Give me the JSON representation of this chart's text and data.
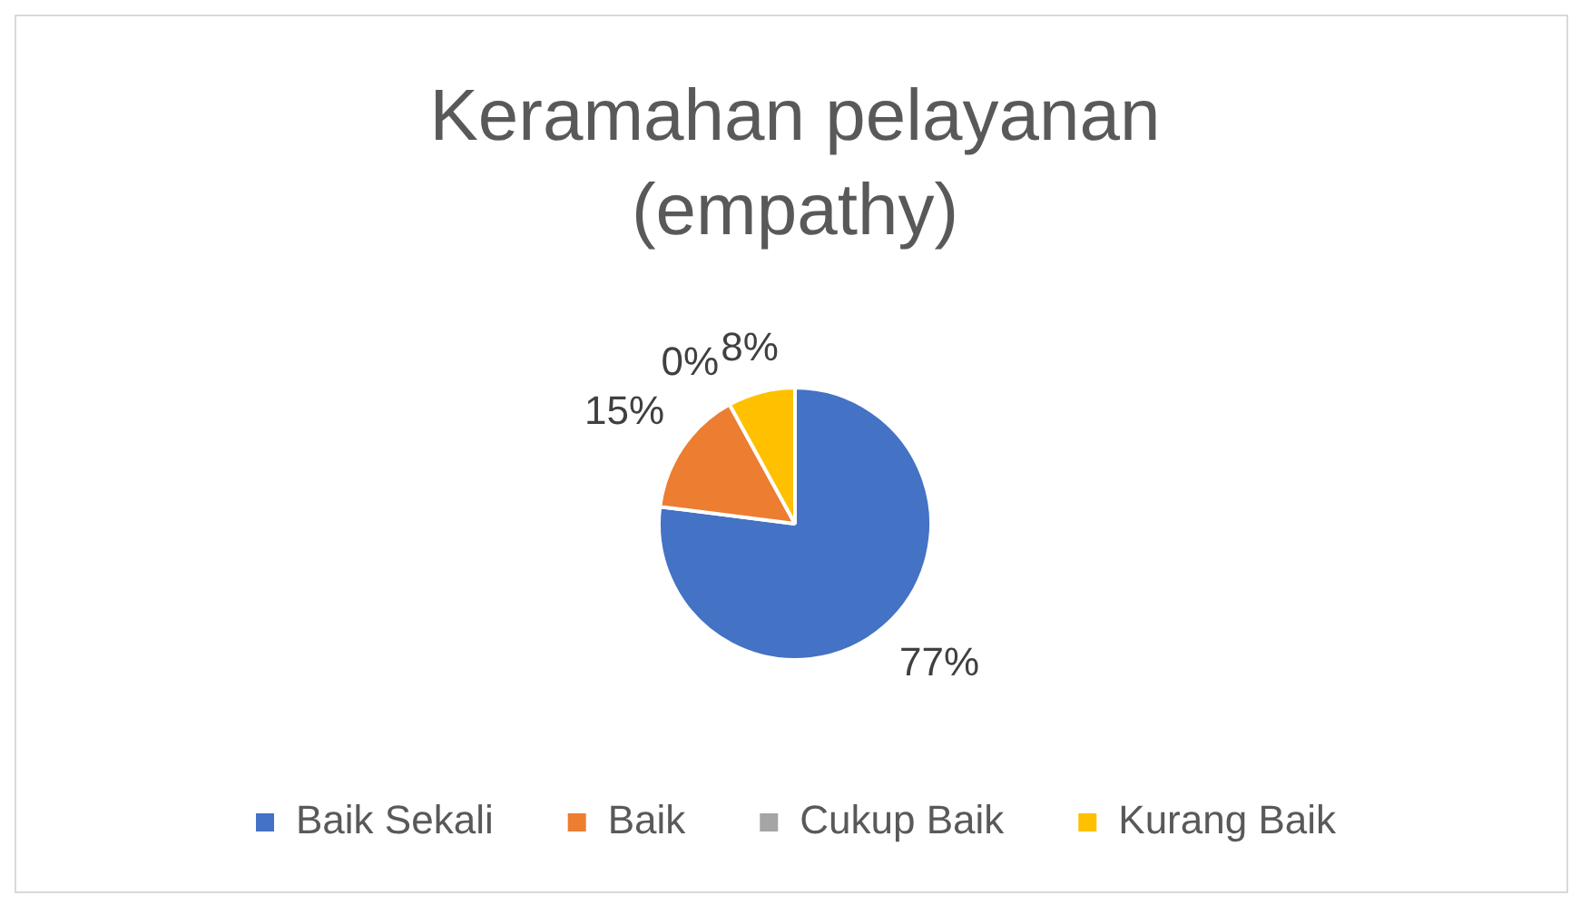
{
  "chart_data": {
    "type": "pie",
    "title": "Keramahan pelayanan (empathy)",
    "categories": [
      "Baik Sekali",
      "Baik",
      "Cukup Baik",
      "Kurang Baik"
    ],
    "values": [
      77,
      15,
      0,
      8
    ],
    "colors": [
      "#4472c4",
      "#ed7d31",
      "#a5a5a5",
      "#ffc000"
    ],
    "value_labels": [
      "77%",
      "15%",
      "0%",
      "8%"
    ],
    "legend": "bottom"
  }
}
